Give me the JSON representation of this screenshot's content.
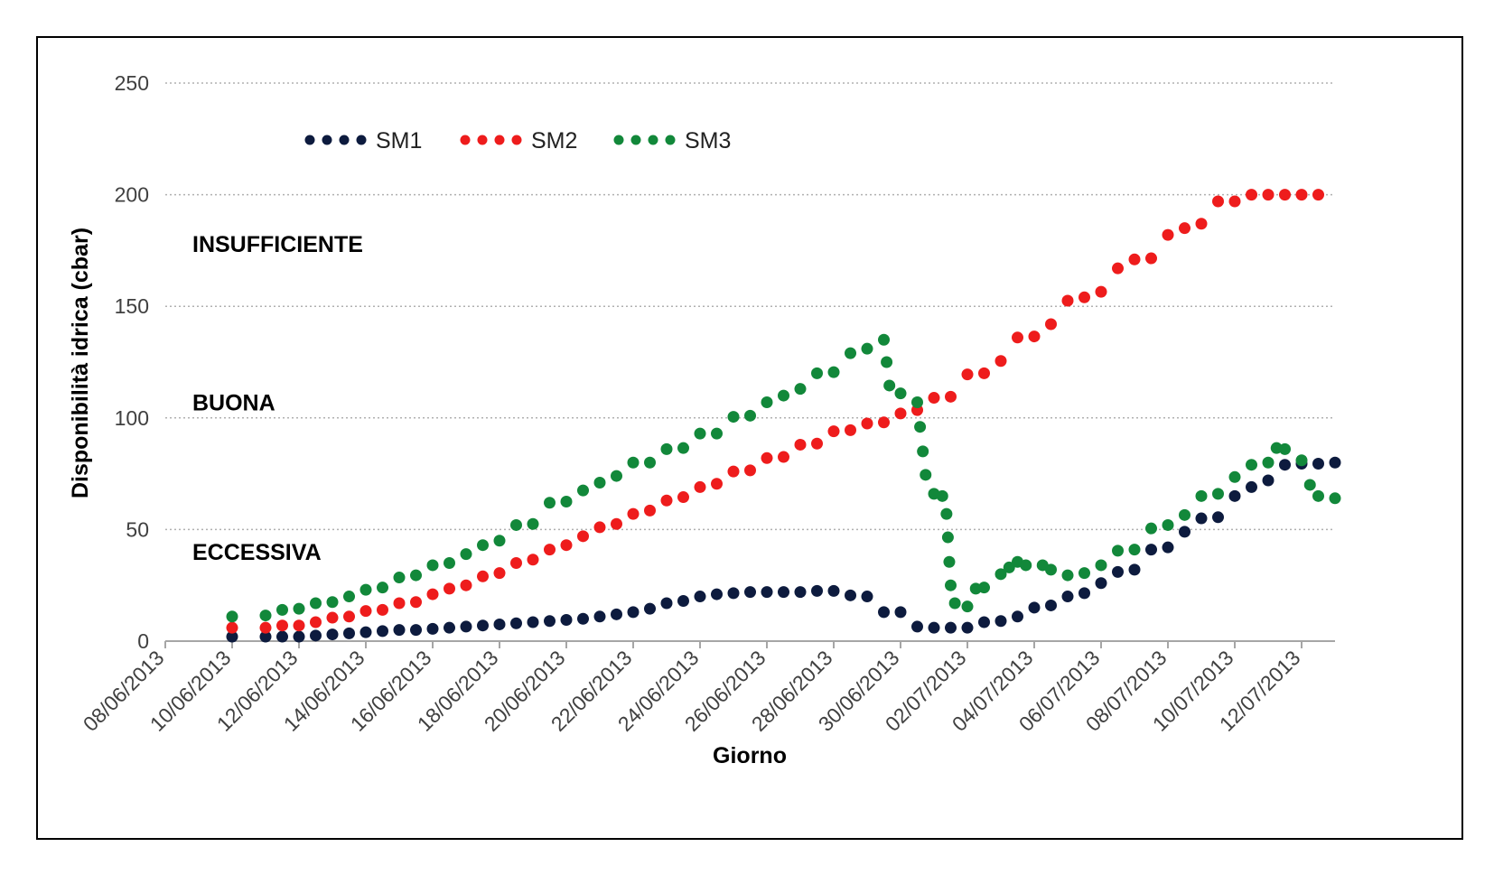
{
  "chart_data": {
    "type": "scatter",
    "title": "",
    "xlabel": "Giorno",
    "ylabel": "Disponibilità idrica  (cbar)",
    "ylim": [
      0,
      250
    ],
    "yticks": [
      0,
      50,
      100,
      150,
      200,
      250
    ],
    "xlim": [
      "08/06/2013",
      "13/07/2013"
    ],
    "xticks": [
      "08/06/2013",
      "10/06/2013",
      "12/06/2013",
      "14/06/2013",
      "16/06/2013",
      "18/06/2013",
      "20/06/2013",
      "22/06/2013",
      "24/06/2013",
      "26/06/2013",
      "28/06/2013",
      "30/06/2013",
      "02/07/2013",
      "04/07/2013",
      "06/07/2013",
      "08/07/2013",
      "10/07/2013",
      "12/07/2013"
    ],
    "grid": "horizontal dotted",
    "legend": "top-left",
    "zones": [
      {
        "label": "INSUFFICIENTE",
        "y": 178
      },
      {
        "label": "BUONA",
        "y": 107
      },
      {
        "label": "ECCESSIVA",
        "y": 40
      }
    ],
    "series": [
      {
        "name": "SM1",
        "color": "#0d1b3e",
        "points": [
          [
            "10/06/2013",
            2
          ],
          [
            "11/06/2013",
            2
          ],
          [
            "11/06/2013 12:00",
            2
          ],
          [
            "12/06/2013",
            2
          ],
          [
            "12/06/2013 12:00",
            2.5
          ],
          [
            "13/06/2013",
            3
          ],
          [
            "13/06/2013 12:00",
            3.5
          ],
          [
            "14/06/2013",
            4
          ],
          [
            "14/06/2013 12:00",
            4.5
          ],
          [
            "15/06/2013",
            5
          ],
          [
            "15/06/2013 12:00",
            5
          ],
          [
            "16/06/2013",
            5.5
          ],
          [
            "16/06/2013 12:00",
            6
          ],
          [
            "17/06/2013",
            6.5
          ],
          [
            "17/06/2013 12:00",
            7
          ],
          [
            "18/06/2013",
            7.5
          ],
          [
            "18/06/2013 12:00",
            8
          ],
          [
            "19/06/2013",
            8.5
          ],
          [
            "19/06/2013 12:00",
            9
          ],
          [
            "20/06/2013",
            9.5
          ],
          [
            "20/06/2013 12:00",
            10
          ],
          [
            "21/06/2013",
            11
          ],
          [
            "21/06/2013 12:00",
            12
          ],
          [
            "22/06/2013",
            13
          ],
          [
            "22/06/2013 12:00",
            14.5
          ],
          [
            "23/06/2013",
            17
          ],
          [
            "23/06/2013 12:00",
            18
          ],
          [
            "24/06/2013",
            20
          ],
          [
            "24/06/2013 12:00",
            21
          ],
          [
            "25/06/2013",
            21.5
          ],
          [
            "25/06/2013 12:00",
            22
          ],
          [
            "26/06/2013",
            22
          ],
          [
            "26/06/2013 12:00",
            22
          ],
          [
            "27/06/2013",
            22
          ],
          [
            "27/06/2013 12:00",
            22.5
          ],
          [
            "28/06/2013",
            22.5
          ],
          [
            "28/06/2013 12:00",
            20.5
          ],
          [
            "29/06/2013",
            20
          ],
          [
            "29/06/2013 12:00",
            13
          ],
          [
            "30/06/2013",
            13
          ],
          [
            "30/06/2013 12:00",
            6.5
          ],
          [
            "01/07/2013",
            6
          ],
          [
            "01/07/2013 12:00",
            6
          ],
          [
            "02/07/2013",
            6
          ],
          [
            "02/07/2013 12:00",
            8.5
          ],
          [
            "03/07/2013",
            9
          ],
          [
            "03/07/2013 12:00",
            11
          ],
          [
            "04/07/2013",
            15
          ],
          [
            "04/07/2013 12:00",
            16
          ],
          [
            "05/07/2013",
            20
          ],
          [
            "05/07/2013 12:00",
            21.5
          ],
          [
            "06/07/2013",
            26
          ],
          [
            "06/07/2013 12:00",
            31
          ],
          [
            "07/07/2013",
            32
          ],
          [
            "07/07/2013 12:00",
            41
          ],
          [
            "08/07/2013",
            42
          ],
          [
            "08/07/2013 12:00",
            49
          ],
          [
            "09/07/2013",
            55
          ],
          [
            "09/07/2013 12:00",
            55.5
          ],
          [
            "10/07/2013",
            65
          ],
          [
            "10/07/2013 12:00",
            69
          ],
          [
            "11/07/2013",
            72
          ],
          [
            "11/07/2013 12:00",
            79
          ],
          [
            "12/07/2013",
            79.5
          ],
          [
            "12/07/2013 12:00",
            79.5
          ],
          [
            "13/07/2013",
            80
          ]
        ]
      },
      {
        "name": "SM2",
        "color": "#ee1c1c",
        "points": [
          [
            "10/06/2013",
            6
          ],
          [
            "11/06/2013",
            6
          ],
          [
            "11/06/2013 12:00",
            7
          ],
          [
            "12/06/2013",
            7
          ],
          [
            "12/06/2013 12:00",
            8.5
          ],
          [
            "13/06/2013",
            10.5
          ],
          [
            "13/06/2013 12:00",
            11
          ],
          [
            "14/06/2013",
            13.5
          ],
          [
            "14/06/2013 12:00",
            14
          ],
          [
            "15/06/2013",
            17
          ],
          [
            "15/06/2013 12:00",
            17.5
          ],
          [
            "16/06/2013",
            21
          ],
          [
            "16/06/2013 12:00",
            23.5
          ],
          [
            "17/06/2013",
            25
          ],
          [
            "17/06/2013 12:00",
            29
          ],
          [
            "18/06/2013",
            30.5
          ],
          [
            "18/06/2013 12:00",
            35
          ],
          [
            "19/06/2013",
            36.5
          ],
          [
            "19/06/2013 12:00",
            41
          ],
          [
            "20/06/2013",
            43
          ],
          [
            "20/06/2013 12:00",
            47
          ],
          [
            "21/06/2013",
            51
          ],
          [
            "21/06/2013 12:00",
            52.5
          ],
          [
            "22/06/2013",
            57
          ],
          [
            "22/06/2013 12:00",
            58.5
          ],
          [
            "23/06/2013",
            63
          ],
          [
            "23/06/2013 12:00",
            64.5
          ],
          [
            "24/06/2013",
            69
          ],
          [
            "24/06/2013 12:00",
            70.5
          ],
          [
            "25/06/2013",
            76
          ],
          [
            "25/06/2013 12:00",
            76.5
          ],
          [
            "26/06/2013",
            82
          ],
          [
            "26/06/2013 12:00",
            82.5
          ],
          [
            "27/06/2013",
            88
          ],
          [
            "27/06/2013 12:00",
            88.5
          ],
          [
            "28/06/2013",
            94
          ],
          [
            "28/06/2013 12:00",
            94.5
          ],
          [
            "29/06/2013",
            97.5
          ],
          [
            "29/06/2013 12:00",
            98
          ],
          [
            "30/06/2013",
            102
          ],
          [
            "30/06/2013 12:00",
            103.5
          ],
          [
            "01/07/2013",
            109
          ],
          [
            "01/07/2013 12:00",
            109.5
          ],
          [
            "02/07/2013",
            119.5
          ],
          [
            "02/07/2013 12:00",
            120
          ],
          [
            "03/07/2013",
            125.5
          ],
          [
            "03/07/2013 12:00",
            136
          ],
          [
            "04/07/2013",
            136.5
          ],
          [
            "04/07/2013 12:00",
            142
          ],
          [
            "05/07/2013",
            152.5
          ],
          [
            "05/07/2013 12:00",
            154
          ],
          [
            "06/07/2013",
            156.5
          ],
          [
            "06/07/2013 12:00",
            167
          ],
          [
            "07/07/2013",
            171
          ],
          [
            "07/07/2013 12:00",
            171.5
          ],
          [
            "08/07/2013",
            182
          ],
          [
            "08/07/2013 12:00",
            185
          ],
          [
            "09/07/2013",
            187
          ],
          [
            "09/07/2013 12:00",
            197
          ],
          [
            "10/07/2013",
            197
          ],
          [
            "10/07/2013 12:00",
            200
          ],
          [
            "11/07/2013",
            200
          ],
          [
            "11/07/2013 12:00",
            200
          ],
          [
            "12/07/2013",
            200
          ],
          [
            "12/07/2013 12:00",
            200
          ]
        ]
      },
      {
        "name": "SM3",
        "color": "#12883a",
        "points": [
          [
            "10/06/2013",
            11
          ],
          [
            "11/06/2013",
            11.5
          ],
          [
            "11/06/2013 12:00",
            14
          ],
          [
            "12/06/2013",
            14.5
          ],
          [
            "12/06/2013 12:00",
            17
          ],
          [
            "13/06/2013",
            17.5
          ],
          [
            "13/06/2013 12:00",
            20
          ],
          [
            "14/06/2013",
            23
          ],
          [
            "14/06/2013 12:00",
            24
          ],
          [
            "15/06/2013",
            28.5
          ],
          [
            "15/06/2013 12:00",
            29.5
          ],
          [
            "16/06/2013",
            34
          ],
          [
            "16/06/2013 12:00",
            35
          ],
          [
            "17/06/2013",
            39
          ],
          [
            "17/06/2013 12:00",
            43
          ],
          [
            "18/06/2013",
            45
          ],
          [
            "18/06/2013 12:00",
            52
          ],
          [
            "19/06/2013",
            52.5
          ],
          [
            "19/06/2013 12:00",
            62
          ],
          [
            "20/06/2013",
            62.5
          ],
          [
            "20/06/2013 12:00",
            67.5
          ],
          [
            "21/06/2013",
            71
          ],
          [
            "21/06/2013 12:00",
            74
          ],
          [
            "22/06/2013",
            80
          ],
          [
            "22/06/2013 12:00",
            80
          ],
          [
            "23/06/2013",
            86
          ],
          [
            "23/06/2013 12:00",
            86.5
          ],
          [
            "24/06/2013",
            93
          ],
          [
            "24/06/2013 12:00",
            93
          ],
          [
            "25/06/2013",
            100.5
          ],
          [
            "25/06/2013 12:00",
            101
          ],
          [
            "26/06/2013",
            107
          ],
          [
            "26/06/2013 12:00",
            110
          ],
          [
            "27/06/2013",
            113
          ],
          [
            "27/06/2013 12:00",
            120
          ],
          [
            "28/06/2013",
            120.5
          ],
          [
            "28/06/2013 12:00",
            129
          ],
          [
            "29/06/2013",
            131
          ],
          [
            "29/06/2013 12:00",
            135
          ],
          [
            "29/06/2013 14:00",
            125
          ],
          [
            "29/06/2013 16:00",
            114.5
          ],
          [
            "30/06/2013",
            111
          ],
          [
            "30/06/2013 12:00",
            107
          ],
          [
            "30/06/2013 14:00",
            96
          ],
          [
            "30/06/2013 16:00",
            85
          ],
          [
            "30/06/2013 18:00",
            74.5
          ],
          [
            "01/07/2013",
            66
          ],
          [
            "01/07/2013 06:00",
            65
          ],
          [
            "01/07/2013 09:00",
            57
          ],
          [
            "01/07/2013 10:00",
            46.5
          ],
          [
            "01/07/2013 11:00",
            35.5
          ],
          [
            "01/07/2013 12:00",
            25
          ],
          [
            "01/07/2013 15:00",
            17
          ],
          [
            "02/07/2013",
            15.5
          ],
          [
            "02/07/2013 06:00",
            23.5
          ],
          [
            "02/07/2013 12:00",
            24
          ],
          [
            "03/07/2013",
            30
          ],
          [
            "03/07/2013 06:00",
            33
          ],
          [
            "03/07/2013 12:00",
            35.5
          ],
          [
            "03/07/2013 18:00",
            34
          ],
          [
            "04/07/2013 06:00",
            34
          ],
          [
            "04/07/2013 12:00",
            32
          ],
          [
            "05/07/2013",
            29.5
          ],
          [
            "05/07/2013 12:00",
            30.5
          ],
          [
            "06/07/2013",
            34
          ],
          [
            "06/07/2013 12:00",
            40.5
          ],
          [
            "07/07/2013",
            41
          ],
          [
            "07/07/2013 12:00",
            50.5
          ],
          [
            "08/07/2013",
            52
          ],
          [
            "08/07/2013 12:00",
            56.5
          ],
          [
            "09/07/2013",
            65
          ],
          [
            "09/07/2013 12:00",
            66
          ],
          [
            "10/07/2013",
            73.5
          ],
          [
            "10/07/2013 12:00",
            79
          ],
          [
            "11/07/2013",
            80
          ],
          [
            "11/07/2013 06:00",
            86.5
          ],
          [
            "11/07/2013 12:00",
            86
          ],
          [
            "12/07/2013",
            81
          ],
          [
            "12/07/2013 06:00",
            70
          ],
          [
            "12/07/2013 12:00",
            65
          ],
          [
            "13/07/2013",
            64
          ]
        ]
      }
    ]
  }
}
